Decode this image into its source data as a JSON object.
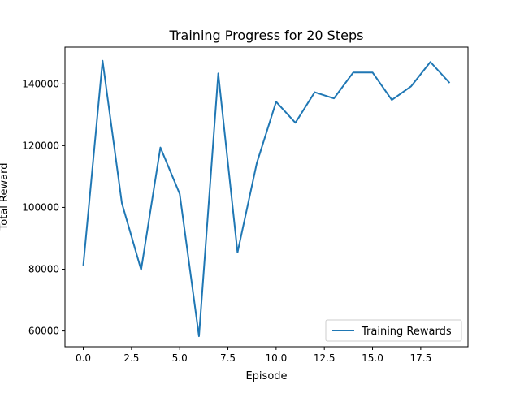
{
  "chart_data": {
    "type": "line",
    "title": "Training Progress for 20 Steps",
    "xlabel": "Episode",
    "ylabel": "Total Reward",
    "xlim": [
      -0.95,
      19.95
    ],
    "ylim": [
      54900,
      151900
    ],
    "xticks": [
      0.0,
      2.5,
      5.0,
      7.5,
      10.0,
      12.5,
      15.0,
      17.5
    ],
    "xtick_labels": [
      "0.0",
      "2.5",
      "5.0",
      "7.5",
      "10.0",
      "12.5",
      "15.0",
      "17.5"
    ],
    "yticks": [
      60000,
      80000,
      100000,
      120000,
      140000
    ],
    "ytick_labels": [
      "60000",
      "80000",
      "100000",
      "120000",
      "140000"
    ],
    "grid": false,
    "legend_position": "lower-right",
    "series": [
      {
        "name": "Training Rewards",
        "color": "#1f77b4",
        "x": [
          0,
          1,
          2,
          3,
          4,
          5,
          6,
          7,
          8,
          9,
          10,
          11,
          12,
          13,
          14,
          15,
          16,
          17,
          18,
          19
        ],
        "values": [
          81200,
          147500,
          101400,
          79800,
          119400,
          104400,
          58300,
          143400,
          85400,
          114400,
          134200,
          127400,
          137300,
          135300,
          143700,
          143700,
          134800,
          139200,
          147100,
          140300
        ]
      }
    ]
  }
}
